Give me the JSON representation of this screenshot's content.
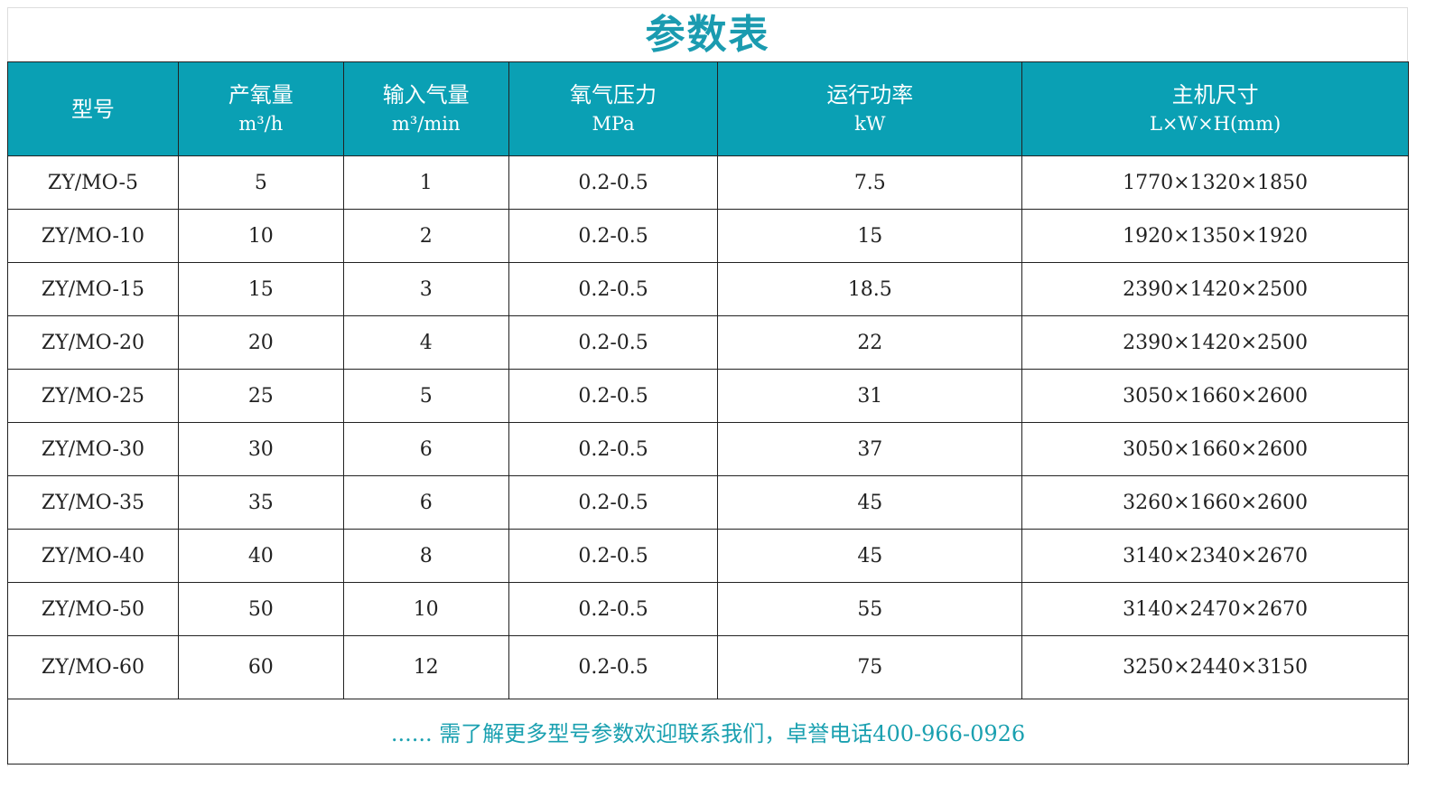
{
  "title": "参数表",
  "colors": {
    "header_bg": "#0aa0b4",
    "title": "#1a9bb0",
    "footer_text": "#1aa0b0"
  },
  "headers": [
    {
      "label": "型号",
      "unit": ""
    },
    {
      "label": "产氧量",
      "unit": "m³/h"
    },
    {
      "label": "输入气量",
      "unit": "m³/min"
    },
    {
      "label": "氧气压力",
      "unit": "MPa"
    },
    {
      "label": "运行功率",
      "unit": "kW"
    },
    {
      "label": "主机尺寸",
      "unit": "L×W×H(mm)"
    }
  ],
  "rows": [
    [
      "ZY/MO-5",
      "5",
      "1",
      "0.2-0.5",
      "7.5",
      "1770×1320×1850"
    ],
    [
      "ZY/MO-10",
      "10",
      "2",
      "0.2-0.5",
      "15",
      "1920×1350×1920"
    ],
    [
      "ZY/MO-15",
      "15",
      "3",
      "0.2-0.5",
      "18.5",
      "2390×1420×2500"
    ],
    [
      "ZY/MO-20",
      "20",
      "4",
      "0.2-0.5",
      "22",
      "2390×1420×2500"
    ],
    [
      "ZY/MO-25",
      "25",
      "5",
      "0.2-0.5",
      "31",
      "3050×1660×2600"
    ],
    [
      "ZY/MO-30",
      "30",
      "6",
      "0.2-0.5",
      "37",
      "3050×1660×2600"
    ],
    [
      "ZY/MO-35",
      "35",
      "6",
      "0.2-0.5",
      "45",
      "3260×1660×2600"
    ],
    [
      "ZY/MO-40",
      "40",
      "8",
      "0.2-0.5",
      "45",
      "3140×2340×2670"
    ],
    [
      "ZY/MO-50",
      "50",
      "10",
      "0.2-0.5",
      "55",
      "3140×2470×2670"
    ],
    [
      "ZY/MO-60",
      "60",
      "12",
      "0.2-0.5",
      "75",
      "3250×2440×3150"
    ]
  ],
  "footer": "......  需了解更多型号参数欢迎联系我们，卓誉电话400-966-0926"
}
